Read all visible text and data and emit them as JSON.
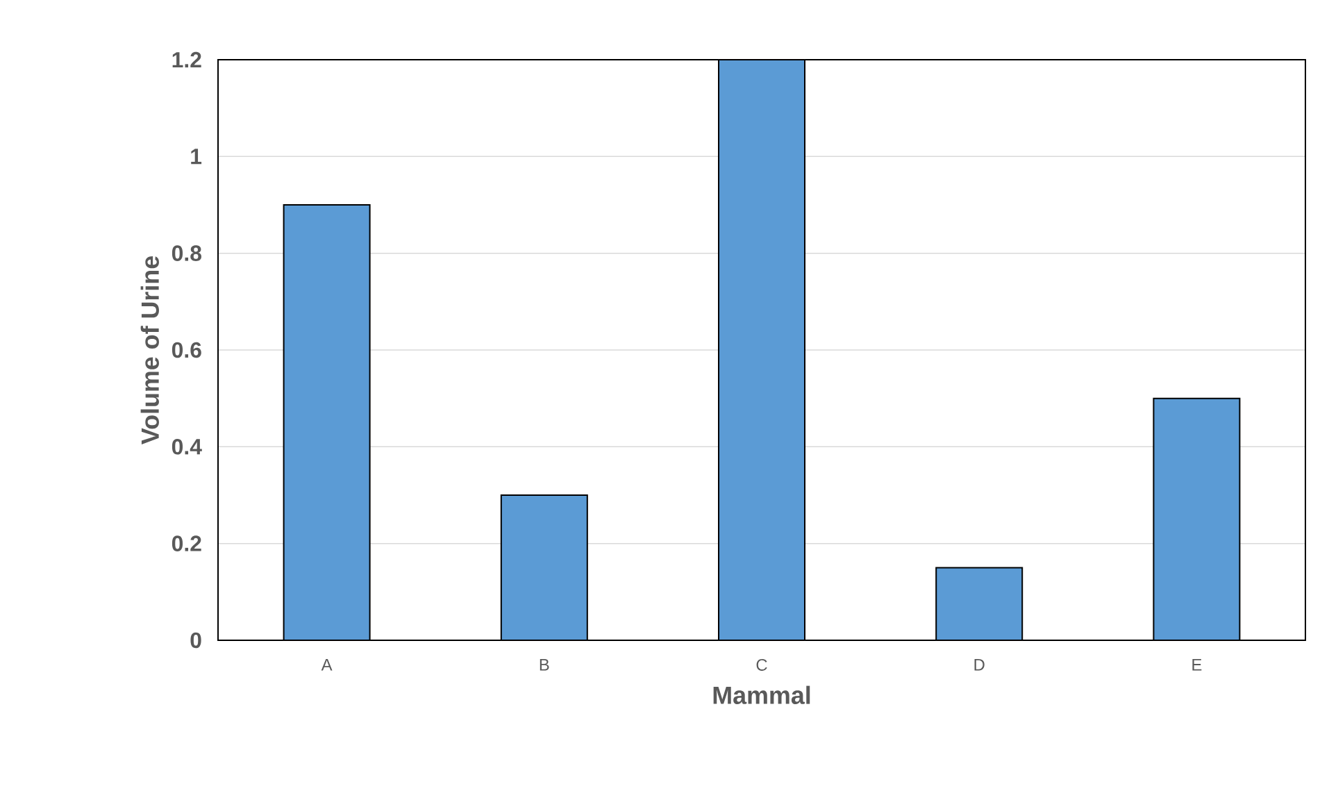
{
  "chart_data": {
    "type": "bar",
    "xlabel": "Mammal",
    "ylabel": "Volume of Urine",
    "categories": [
      "A",
      "B",
      "C",
      "D",
      "E"
    ],
    "values": [
      0.9,
      0.3,
      1.2,
      0.15,
      0.5
    ],
    "color": "#5b9bd5",
    "ylim": [
      0,
      1.2
    ],
    "yticks": [
      0,
      0.2,
      0.4,
      0.6,
      0.8,
      1,
      1.2
    ],
    "grid": "y"
  }
}
